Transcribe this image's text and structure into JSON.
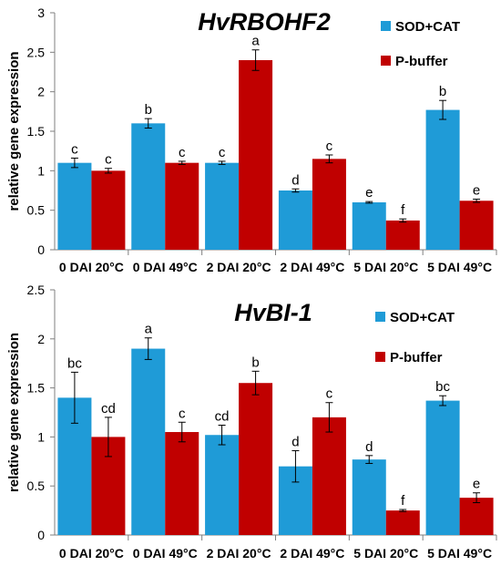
{
  "chart_data": [
    {
      "type": "bar",
      "title": "HvRBOHF2",
      "ylabel": "relative gene expression",
      "ylim": [
        0,
        3
      ],
      "yticks": [
        "0",
        "0.5",
        "1",
        "1.5",
        "2",
        "2.5",
        "3"
      ],
      "categories": [
        "0 DAI 20°C",
        "0 DAI 49°C",
        "2 DAI 20°C",
        "2 DAI 49°C",
        "5 DAI 20°C",
        "5 DAI 49°C"
      ],
      "series": [
        {
          "name": "SOD+CAT",
          "color": "#1f9bd7",
          "values": [
            1.1,
            1.6,
            1.1,
            0.75,
            0.6,
            1.77
          ],
          "errors": [
            0.06,
            0.06,
            0.02,
            0.02,
            0.01,
            0.12
          ],
          "labels": [
            "c",
            "b",
            "c",
            "d",
            "e",
            "b"
          ]
        },
        {
          "name": "P-buffer",
          "color": "#c00000",
          "values": [
            1.0,
            1.1,
            2.4,
            1.15,
            0.37,
            0.62
          ],
          "errors": [
            0.03,
            0.02,
            0.13,
            0.05,
            0.02,
            0.02
          ],
          "labels": [
            "c",
            "c",
            "a",
            "c",
            "f",
            "e"
          ]
        }
      ],
      "legend": "top-right",
      "grid": false
    },
    {
      "type": "bar",
      "title": "HvBI-1",
      "ylabel": "relative gene expression",
      "ylim": [
        0,
        2.5
      ],
      "yticks": [
        "0",
        "0.5",
        "1",
        "1.5",
        "2",
        "2.5"
      ],
      "categories": [
        "0 DAI 20°C",
        "0 DAI 49°C",
        "2 DAI 20°C",
        "2 DAI 49°C",
        "5 DAI 20°C",
        "5 DAI 49°C"
      ],
      "series": [
        {
          "name": "SOD+CAT",
          "color": "#1f9bd7",
          "values": [
            1.4,
            1.9,
            1.02,
            0.7,
            0.77,
            1.37
          ],
          "errors": [
            0.26,
            0.11,
            0.1,
            0.16,
            0.04,
            0.05
          ],
          "labels": [
            "bc",
            "a",
            "cd",
            "d",
            "d",
            "bc"
          ]
        },
        {
          "name": "P-buffer",
          "color": "#c00000",
          "values": [
            1.0,
            1.05,
            1.55,
            1.2,
            0.25,
            0.38
          ],
          "errors": [
            0.2,
            0.1,
            0.12,
            0.15,
            0.01,
            0.05
          ],
          "labels": [
            "cd",
            "c",
            "b",
            "c",
            "f",
            "e"
          ]
        }
      ],
      "legend": "top-right",
      "grid": false
    }
  ]
}
